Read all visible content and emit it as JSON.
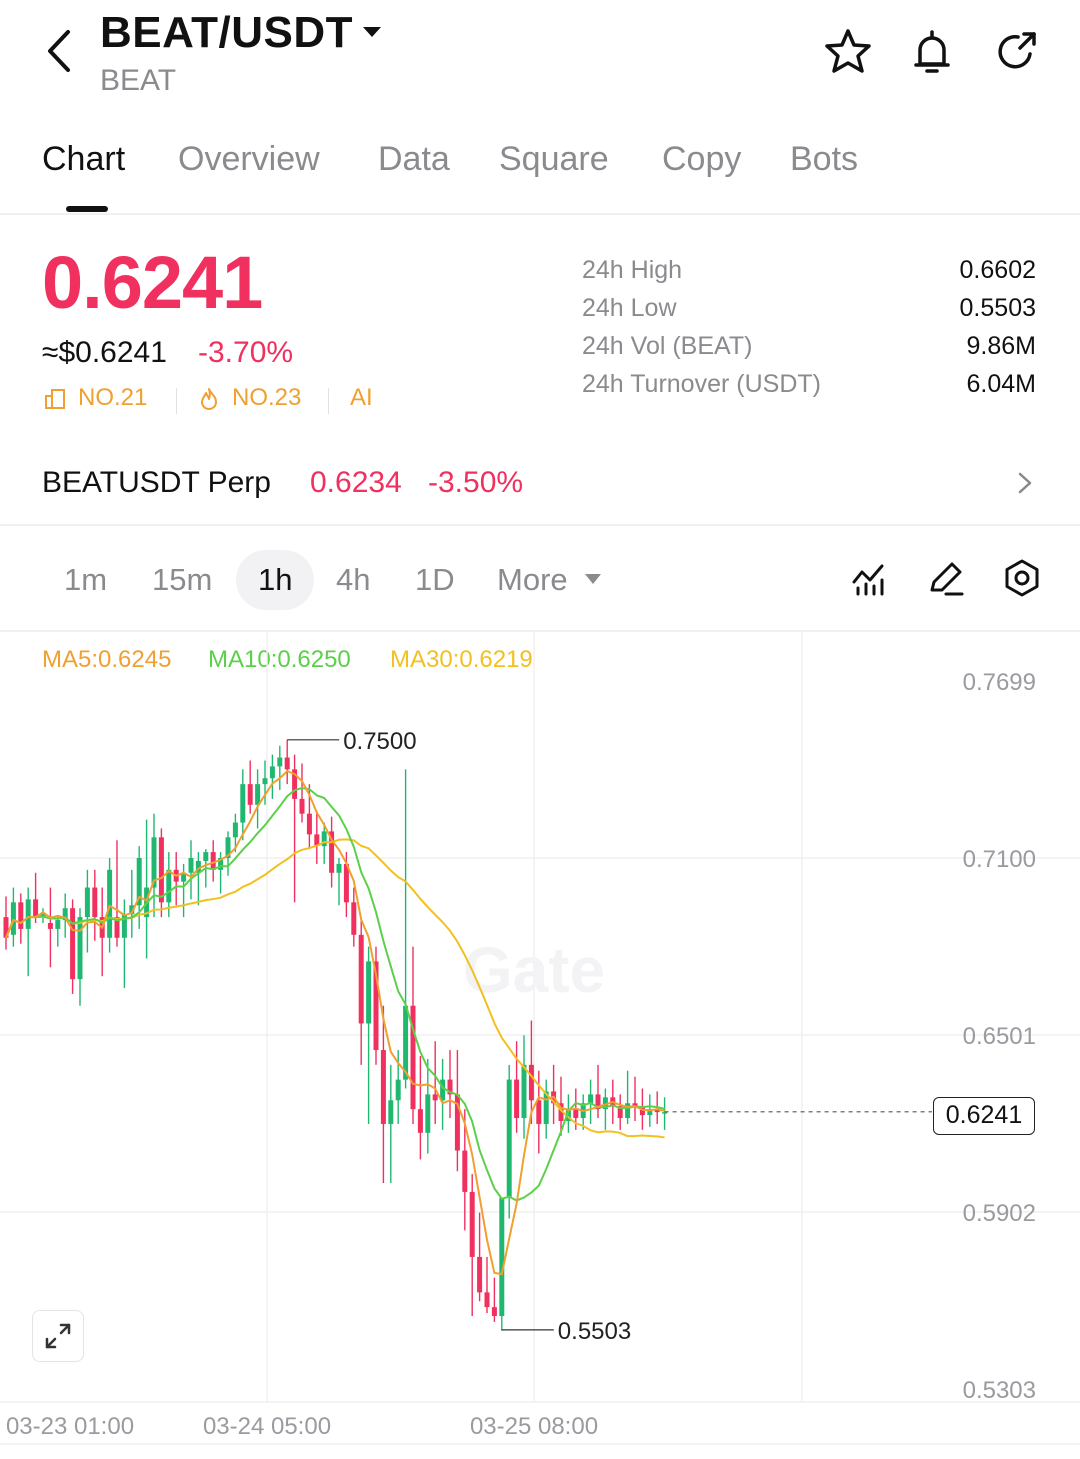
{
  "header": {
    "pair": "BEAT/USDT",
    "base": "BEAT"
  },
  "tabs": [
    "Chart",
    "Overview",
    "Data",
    "Square",
    "Copy",
    "Bots"
  ],
  "price": {
    "last": "0.6241",
    "usd": "≈$0.6241",
    "change": "-3.70%",
    "rank1": "NO.21",
    "rank2": "NO.23",
    "ai": "AI"
  },
  "stats": [
    {
      "label": "24h  High",
      "value": "0.6602"
    },
    {
      "label": "24h  Low",
      "value": "0.5503"
    },
    {
      "label": "24h  Vol (BEAT)",
      "value": "9.86M"
    },
    {
      "label": "24h  Turnover (USDT)",
      "value": "6.04M"
    }
  ],
  "perp": {
    "name": "BEATUSDT Perp",
    "price": "0.6234",
    "change": "-3.50%"
  },
  "timeframes": [
    "1m",
    "15m",
    "1h",
    "4h",
    "1D",
    "More"
  ],
  "active_timeframe": "1h",
  "ma": {
    "ma5": "MA5:0.6245",
    "ma10": "MA10:0.6250",
    "ma30": "MA30:0.6219",
    "ma5_color": "#f0a030",
    "ma10_color": "#5cd04a",
    "ma30_color": "#f2c020"
  },
  "colors": {
    "up": "#20b870",
    "down": "#f0305e",
    "accent": "#f0305e"
  },
  "chart_data": {
    "type": "candlestick",
    "y_ticks": [
      "0.7699",
      "0.7100",
      "0.6501",
      "0.5902",
      "0.5303"
    ],
    "ylim": [
      0.5303,
      0.7699
    ],
    "x_ticks": [
      "03-23 01:00",
      "03-24 05:00",
      "03-25 08:00"
    ],
    "high_marker": "0.7500",
    "low_marker": "0.5503",
    "current_price": "0.6241",
    "candles": [
      [
        0.69,
        0.697,
        0.679,
        0.683
      ],
      [
        0.684,
        0.7,
        0.68,
        0.695
      ],
      [
        0.695,
        0.698,
        0.681,
        0.686
      ],
      [
        0.686,
        0.7,
        0.67,
        0.696
      ],
      [
        0.696,
        0.705,
        0.688,
        0.69
      ],
      [
        0.69,
        0.693,
        0.688,
        0.691
      ],
      [
        0.688,
        0.7,
        0.673,
        0.686
      ],
      [
        0.686,
        0.69,
        0.68,
        0.689
      ],
      [
        0.689,
        0.698,
        0.683,
        0.693
      ],
      [
        0.693,
        0.696,
        0.664,
        0.669
      ],
      [
        0.669,
        0.693,
        0.66,
        0.69
      ],
      [
        0.69,
        0.706,
        0.678,
        0.7
      ],
      [
        0.7,
        0.706,
        0.682,
        0.69
      ],
      [
        0.69,
        0.7,
        0.67,
        0.683
      ],
      [
        0.683,
        0.71,
        0.678,
        0.706
      ],
      [
        0.69,
        0.716,
        0.68,
        0.683
      ],
      [
        0.683,
        0.696,
        0.666,
        0.691
      ],
      [
        0.691,
        0.706,
        0.683,
        0.694
      ],
      [
        0.694,
        0.714,
        0.686,
        0.71
      ],
      [
        0.69,
        0.723,
        0.676,
        0.7
      ],
      [
        0.7,
        0.725,
        0.69,
        0.717
      ],
      [
        0.717,
        0.72,
        0.69,
        0.695
      ],
      [
        0.695,
        0.712,
        0.69,
        0.706
      ],
      [
        0.706,
        0.712,
        0.694,
        0.702
      ],
      [
        0.702,
        0.708,
        0.69,
        0.705
      ],
      [
        0.705,
        0.716,
        0.696,
        0.71
      ],
      [
        0.705,
        0.712,
        0.694,
        0.709
      ],
      [
        0.709,
        0.713,
        0.7,
        0.712
      ],
      [
        0.712,
        0.716,
        0.702,
        0.706
      ],
      [
        0.706,
        0.712,
        0.698,
        0.71
      ],
      [
        0.71,
        0.719,
        0.704,
        0.717
      ],
      [
        0.717,
        0.725,
        0.712,
        0.722
      ],
      [
        0.722,
        0.74,
        0.716,
        0.735
      ],
      [
        0.735,
        0.743,
        0.725,
        0.728
      ],
      [
        0.728,
        0.74,
        0.72,
        0.735
      ],
      [
        0.735,
        0.743,
        0.728,
        0.737
      ],
      [
        0.737,
        0.745,
        0.73,
        0.741
      ],
      [
        0.741,
        0.748,
        0.733,
        0.744
      ],
      [
        0.744,
        0.75,
        0.735,
        0.74
      ],
      [
        0.74,
        0.745,
        0.695,
        0.73
      ],
      [
        0.73,
        0.742,
        0.722,
        0.725
      ],
      [
        0.725,
        0.735,
        0.713,
        0.718
      ],
      [
        0.718,
        0.726,
        0.708,
        0.714
      ],
      [
        0.714,
        0.722,
        0.708,
        0.719
      ],
      [
        0.719,
        0.724,
        0.7,
        0.705
      ],
      [
        0.705,
        0.71,
        0.694,
        0.708
      ],
      [
        0.708,
        0.712,
        0.69,
        0.695
      ],
      [
        0.695,
        0.7,
        0.68,
        0.684
      ],
      [
        0.684,
        0.69,
        0.64,
        0.654
      ],
      [
        0.654,
        0.68,
        0.62,
        0.675
      ],
      [
        0.675,
        0.68,
        0.64,
        0.645
      ],
      [
        0.645,
        0.66,
        0.6,
        0.62
      ],
      [
        0.62,
        0.64,
        0.6,
        0.628
      ],
      [
        0.628,
        0.645,
        0.62,
        0.635
      ],
      [
        0.635,
        0.74,
        0.632,
        0.66
      ],
      [
        0.66,
        0.68,
        0.62,
        0.625
      ],
      [
        0.625,
        0.643,
        0.608,
        0.617
      ],
      [
        0.617,
        0.642,
        0.61,
        0.63
      ],
      [
        0.63,
        0.648,
        0.62,
        0.628
      ],
      [
        0.628,
        0.642,
        0.618,
        0.635
      ],
      [
        0.635,
        0.645,
        0.622,
        0.63
      ],
      [
        0.63,
        0.645,
        0.604,
        0.611
      ],
      [
        0.611,
        0.625,
        0.584,
        0.597
      ],
      [
        0.597,
        0.603,
        0.555,
        0.575
      ],
      [
        0.575,
        0.59,
        0.56,
        0.563
      ],
      [
        0.563,
        0.575,
        0.556,
        0.558
      ],
      [
        0.558,
        0.568,
        0.553,
        0.555
      ],
      [
        0.555,
        0.595,
        0.55,
        0.595
      ],
      [
        0.595,
        0.64,
        0.588,
        0.635
      ],
      [
        0.635,
        0.648,
        0.617,
        0.622
      ],
      [
        0.622,
        0.65,
        0.615,
        0.64
      ],
      [
        0.64,
        0.655,
        0.62,
        0.628
      ],
      [
        0.628,
        0.638,
        0.61,
        0.62
      ],
      [
        0.62,
        0.635,
        0.615,
        0.631
      ],
      [
        0.631,
        0.64,
        0.62,
        0.627
      ],
      [
        0.627,
        0.636,
        0.616,
        0.621
      ],
      [
        0.621,
        0.63,
        0.617,
        0.625
      ],
      [
        0.625,
        0.632,
        0.618,
        0.622
      ],
      [
        0.622,
        0.63,
        0.618,
        0.627
      ],
      [
        0.627,
        0.635,
        0.62,
        0.63
      ],
      [
        0.63,
        0.64,
        0.622,
        0.625
      ],
      [
        0.625,
        0.632,
        0.618,
        0.629
      ],
      [
        0.629,
        0.635,
        0.62,
        0.626
      ],
      [
        0.626,
        0.63,
        0.618,
        0.622
      ],
      [
        0.622,
        0.638,
        0.62,
        0.627
      ],
      [
        0.627,
        0.636,
        0.621,
        0.626
      ],
      [
        0.626,
        0.632,
        0.618,
        0.623
      ],
      [
        0.623,
        0.63,
        0.619,
        0.625
      ],
      [
        0.625,
        0.631,
        0.62,
        0.624
      ],
      [
        0.624,
        0.629,
        0.618,
        0.624
      ]
    ]
  }
}
